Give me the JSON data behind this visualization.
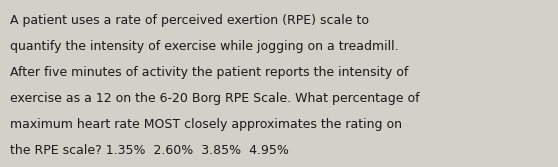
{
  "background_color": "#d3cfc9",
  "text_color": "#1a1a1a",
  "font_size": 9.0,
  "fig_width": 5.58,
  "fig_height": 1.67,
  "dpi": 100,
  "line1": "A patient uses a rate of perceived exertion (RPE) scale to",
  "line2": "quantify the intensity of exercise while jogging on a treadmill.",
  "line3": "After five minutes of activity the patient reports the intensity of",
  "line4": "exercise as a 12 on the 6-20 Borg RPE Scale. What percentage of",
  "line5": "maximum heart rate MOST closely approximates the rating on",
  "line6": "the RPE scale? 1.35%  2.60%  3.85%  4.95%"
}
